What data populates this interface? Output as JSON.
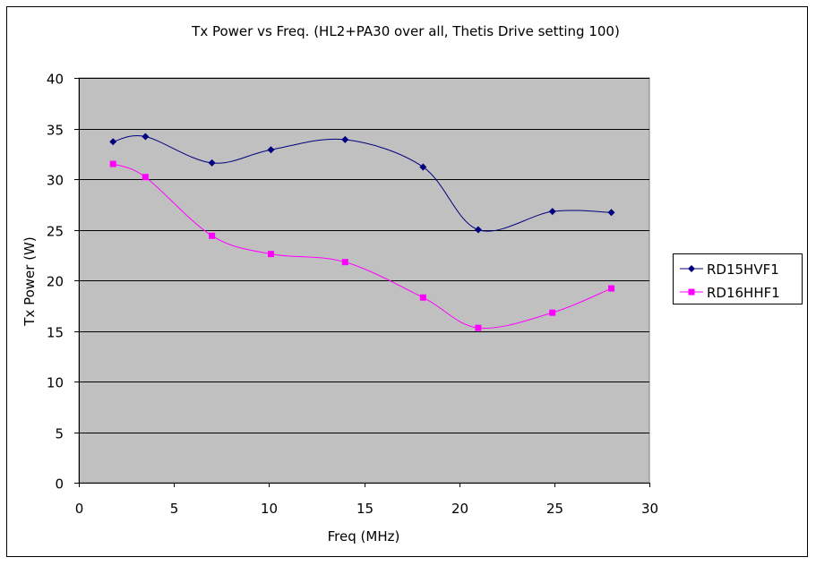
{
  "chart_data": {
    "type": "line",
    "title": "Tx Power vs Freq. (HL2+PA30 over all, Thetis Drive setting  100)",
    "xlabel": "Freq (MHz)",
    "ylabel": "Tx Power (W)",
    "xlim": [
      0,
      30
    ],
    "ylim": [
      0,
      40
    ],
    "xticks": [
      0,
      5,
      10,
      15,
      20,
      25,
      30
    ],
    "yticks": [
      0,
      5,
      10,
      15,
      20,
      25,
      30,
      35,
      40
    ],
    "grid": "horizontal",
    "plot_background": "#c0c0c0",
    "legend_position": "right",
    "series": [
      {
        "name": "RD15HVF1",
        "color": "#000080",
        "marker": "diamond",
        "x": [
          1.8,
          3.5,
          7.0,
          10.1,
          14.0,
          18.1,
          21.0,
          24.9,
          28.0
        ],
        "y": [
          33.7,
          34.2,
          31.6,
          32.9,
          33.9,
          31.2,
          25.0,
          26.8,
          26.7
        ]
      },
      {
        "name": "RD16HHF1",
        "color": "#ff00ff",
        "marker": "square",
        "x": [
          1.8,
          3.5,
          7.0,
          10.1,
          14.0,
          18.1,
          21.0,
          24.9,
          28.0
        ],
        "y": [
          31.5,
          30.2,
          24.4,
          22.6,
          21.8,
          18.3,
          15.3,
          16.8,
          19.2
        ]
      }
    ]
  }
}
